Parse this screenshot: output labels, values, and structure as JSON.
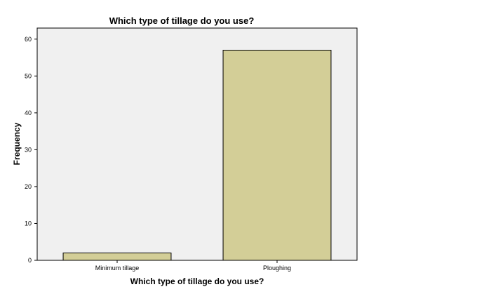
{
  "chart_data": {
    "type": "bar",
    "title": "Which type of tillage do you use?",
    "xlabel": "Which type of tillage do you use?",
    "ylabel": "Frequency",
    "categories": [
      "Minimum tillage",
      "Ploughing"
    ],
    "values": [
      2,
      57
    ],
    "ylim": [
      0,
      63
    ],
    "yticks": [
      0,
      10,
      20,
      30,
      40,
      50,
      60
    ],
    "grid": false,
    "colors": {
      "plot_background": "#f0f0f0",
      "bar_fill": "#d3ce97",
      "bar_stroke": "#000000",
      "frame": "#000000"
    }
  }
}
